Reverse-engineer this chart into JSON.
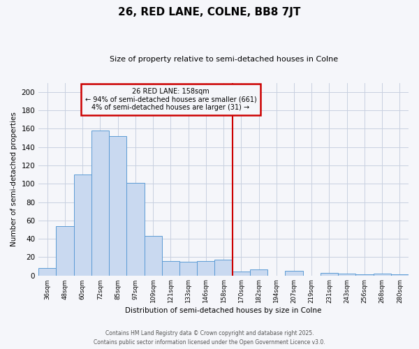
{
  "title": "26, RED LANE, COLNE, BB8 7JT",
  "subtitle": "Size of property relative to semi-detached houses in Colne",
  "xlabel": "Distribution of semi-detached houses by size in Colne",
  "ylabel": "Number of semi-detached properties",
  "bin_labels": [
    "36sqm",
    "48sqm",
    "60sqm",
    "72sqm",
    "85sqm",
    "97sqm",
    "109sqm",
    "121sqm",
    "133sqm",
    "146sqm",
    "158sqm",
    "170sqm",
    "182sqm",
    "194sqm",
    "207sqm",
    "219sqm",
    "231sqm",
    "243sqm",
    "256sqm",
    "268sqm",
    "280sqm"
  ],
  "bar_values": [
    8,
    54,
    110,
    158,
    152,
    101,
    43,
    16,
    15,
    16,
    17,
    4,
    7,
    0,
    5,
    0,
    3,
    2,
    1,
    2,
    1
  ],
  "bar_color": "#c9d9f0",
  "bar_edge_color": "#5b9bd5",
  "vline_index": 10,
  "vline_color": "#cc0000",
  "vline_label": "26 RED LANE: 158sqm",
  "annotation_smaller": "← 94% of semi-detached houses are smaller (661)",
  "annotation_larger": "4% of semi-detached houses are larger (31) →",
  "annotation_box_edge": "#cc0000",
  "ylim": [
    0,
    210
  ],
  "yticks": [
    0,
    20,
    40,
    60,
    80,
    100,
    120,
    140,
    160,
    180,
    200
  ],
  "footnote1": "Contains HM Land Registry data © Crown copyright and database right 2025.",
  "footnote2": "Contains public sector information licensed under the Open Government Licence v3.0.",
  "bg_color": "#f5f6fa",
  "grid_color": "#c8d0e0"
}
